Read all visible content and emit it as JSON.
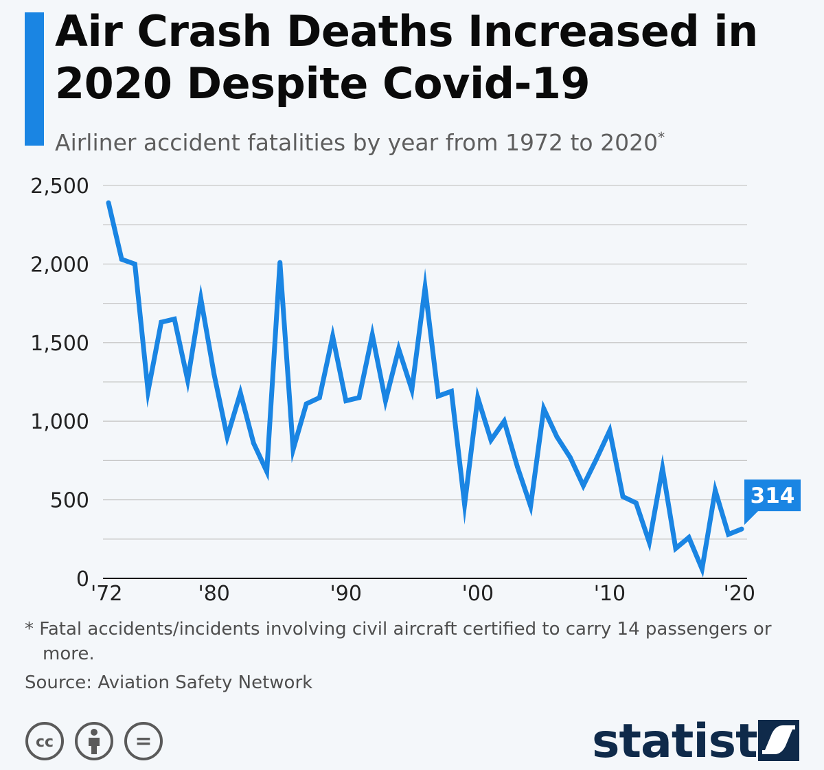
{
  "colors": {
    "accent": "#1a85e3",
    "line": "#1a85e3",
    "grid": "#c8c8c8",
    "brand": "#0f2a4a",
    "icon": "#5a5a5a"
  },
  "header": {
    "title": "Air Crash Deaths Increased in 2020 Despite Covid-19",
    "subtitle": "Airliner accident fatalities by year from 1972 to 2020",
    "subtitle_marker": "*"
  },
  "chart_data": {
    "type": "line",
    "title": "Air Crash Deaths Increased in 2020 Despite Covid-19",
    "subtitle": "Airliner accident fatalities by year from 1972 to 2020*",
    "xlabel": "",
    "ylabel": "",
    "ylim": [
      0,
      2500
    ],
    "xlim": [
      1972,
      2020
    ],
    "grid": true,
    "legend": "none",
    "y_ticks": [
      0,
      500,
      1000,
      1500,
      2000,
      2500
    ],
    "y_tick_labels": [
      "0",
      "500",
      "1,000",
      "1,500",
      "2,000",
      "2,500"
    ],
    "x_ticks": [
      1972,
      1980,
      1990,
      2000,
      2010,
      2020
    ],
    "x_tick_labels": [
      "'72",
      "'80",
      "'90",
      "'00",
      "'10",
      "'20"
    ],
    "x": [
      1972,
      1973,
      1974,
      1975,
      1976,
      1977,
      1978,
      1979,
      1980,
      1981,
      1982,
      1983,
      1984,
      1985,
      1986,
      1987,
      1988,
      1989,
      1990,
      1991,
      1992,
      1993,
      1994,
      1995,
      1996,
      1997,
      1998,
      1999,
      2000,
      2001,
      2002,
      2003,
      2004,
      2005,
      2006,
      2007,
      2008,
      2009,
      2010,
      2011,
      2012,
      2013,
      2014,
      2015,
      2016,
      2017,
      2018,
      2019,
      2020
    ],
    "series": [
      {
        "values": [
          2390,
          2030,
          2000,
          1190,
          1630,
          1650,
          1260,
          1780,
          1300,
          900,
          1180,
          860,
          680,
          2010,
          820,
          1110,
          1150,
          1540,
          1130,
          1150,
          1550,
          1130,
          1460,
          1200,
          1850,
          1160,
          1190,
          470,
          1150,
          880,
          1000,
          710,
          460,
          1080,
          900,
          770,
          590,
          760,
          940,
          520,
          480,
          230,
          700,
          190,
          260,
          60,
          560,
          280,
          314
        ]
      }
    ],
    "annotations": [
      {
        "x": 2020,
        "y": 314,
        "label": "314"
      }
    ]
  },
  "footer": {
    "note_marker": "*",
    "note": "Fatal accidents/incidents involving civil aircraft certified to carry 14 passengers or more.",
    "source": "Source: Aviation Safety Network",
    "brand": "statista",
    "license_icons": [
      "creative-commons-icon",
      "attribution-person-icon",
      "no-derivatives-icon"
    ],
    "license_icon_text": {
      "cc": "cc",
      "nd": "="
    }
  }
}
